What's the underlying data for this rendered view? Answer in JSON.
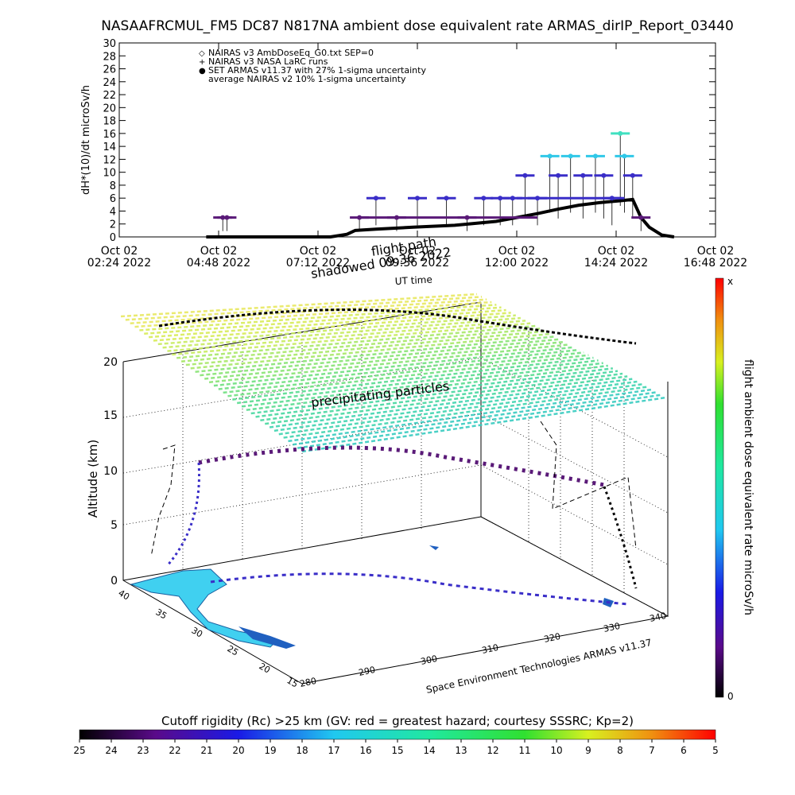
{
  "page": {
    "title": "NASAAFRCMUL_FM5 DC87 N817NA ambient dose equivalent rate ARMAS_dirIP_Report_03440"
  },
  "colors": {
    "black": "#000000",
    "purple": "#5a1a78",
    "indigo": "#3a2ec8",
    "cyan": "#30c8e8",
    "teal": "#40e0c0"
  },
  "chart_data": [
    {
      "type": "scatter",
      "name": "dose_rate_timeseries",
      "ylabel": "dH*(10)/dt microSv/h",
      "xlabel": "UT time",
      "ylim": [
        0,
        30
      ],
      "yticks": [
        0,
        2,
        4,
        6,
        8,
        10,
        12,
        14,
        16,
        18,
        20,
        22,
        24,
        26,
        28,
        30
      ],
      "xticks": [
        {
          "line1": "Oct 02",
          "line2": "02:24 2022",
          "hours": 2.4
        },
        {
          "line1": "Oct 02",
          "line2": "04:48 2022",
          "hours": 4.8
        },
        {
          "line1": "Oct 02",
          "line2": "07:12 2022",
          "hours": 7.2
        },
        {
          "line1": "Oct 02",
          "line2": "09:36 2022",
          "hours": 9.6
        },
        {
          "line1": "Oct 02",
          "line2": "12:00 2022",
          "hours": 12.0
        },
        {
          "line1": "Oct 02",
          "line2": "14:24 2022",
          "hours": 14.4
        },
        {
          "line1": "Oct 02",
          "line2": "16:48 2022",
          "hours": 16.8
        }
      ],
      "legend": [
        {
          "symbol": "◇",
          "label": "NAIRAS v3 AmbDoseEq_G0.txt SEP=0",
          "color": "#000000"
        },
        {
          "symbol": "+",
          "label": "NAIRAS v3 NASA LaRC runs",
          "color": "#000000"
        },
        {
          "symbol": "●",
          "label": "SET ARMAS v11.37 with 27% 1-sigma uncertainty",
          "color": "#3a2ec8"
        },
        {
          "symbol": "",
          "label": "average NAIRAS v2 10% 1-sigma uncertainty",
          "color": "#000000"
        }
      ],
      "series": [
        {
          "name": "NAIRAS v3 AmbDoseEq_G0.txt SEP=0",
          "x_hours": [
            4.5,
            5.5,
            6.5,
            7.5,
            7.9,
            8.1,
            8.6,
            9.5,
            10.5,
            11.5,
            12.0,
            12.5,
            13.0,
            13.5,
            14.0,
            14.5,
            14.8,
            15.0,
            15.2,
            15.5,
            15.8
          ],
          "y": [
            0,
            0,
            0,
            0,
            0.4,
            1.0,
            1.2,
            1.5,
            1.8,
            2.4,
            3.0,
            3.6,
            4.3,
            4.9,
            5.3,
            5.6,
            5.8,
            3.0,
            1.5,
            0.3,
            0
          ]
        },
        {
          "name": "SET ARMAS v11.37 with 27% 1-sigma uncertainty",
          "x_hours": [
            4.9,
            5.0,
            8.2,
            8.6,
            9.1,
            9.6,
            10.3,
            10.8,
            11.2,
            11.6,
            11.9,
            12.2,
            12.5,
            12.8,
            13.0,
            13.3,
            13.6,
            13.9,
            14.1,
            14.3,
            14.5,
            14.6,
            14.8,
            15.0
          ],
          "y": [
            3,
            3,
            3,
            6,
            3,
            6,
            6,
            3,
            6,
            6,
            6,
            9.5,
            6,
            12.5,
            9.5,
            12.5,
            9.5,
            12.5,
            9.5,
            6,
            16,
            12.5,
            9.5,
            3
          ]
        }
      ]
    },
    {
      "type": "scatter",
      "name": "flight_track_3d",
      "zlabel": "Altitude (km)",
      "zticks": [
        "0",
        "5",
        "10",
        "15",
        "20"
      ],
      "lat_ticks": [
        "15",
        "20",
        "25",
        "30",
        "35",
        "40"
      ],
      "lon_ticks": [
        "280",
        "290",
        "300",
        "310",
        "320",
        "330",
        "340"
      ],
      "annotations": {
        "credit": "Space Environment Technologies ARMAS v11.37",
        "layer": "precipitating particles",
        "flight_path": "flight path",
        "shadowed": "shadowed 09:36 2022",
        "ut_time": "UT time"
      },
      "colorbar": {
        "label": "flight ambient dose equivalent rate microSv/h",
        "top": "x",
        "bottom": "0"
      }
    },
    {
      "type": "heatmap",
      "name": "cutoff_rigidity_bar",
      "label": "Cutoff rigidity (Rc) >25 km (GV: red = greatest hazard; courtesy SSSRC; Kp=2)",
      "ticks": [
        "25",
        "24",
        "23",
        "22",
        "21",
        "20",
        "19",
        "18",
        "17",
        "16",
        "15",
        "14",
        "13",
        "12",
        "11",
        "10",
        "9",
        "8",
        "7",
        "6",
        "5"
      ]
    }
  ]
}
